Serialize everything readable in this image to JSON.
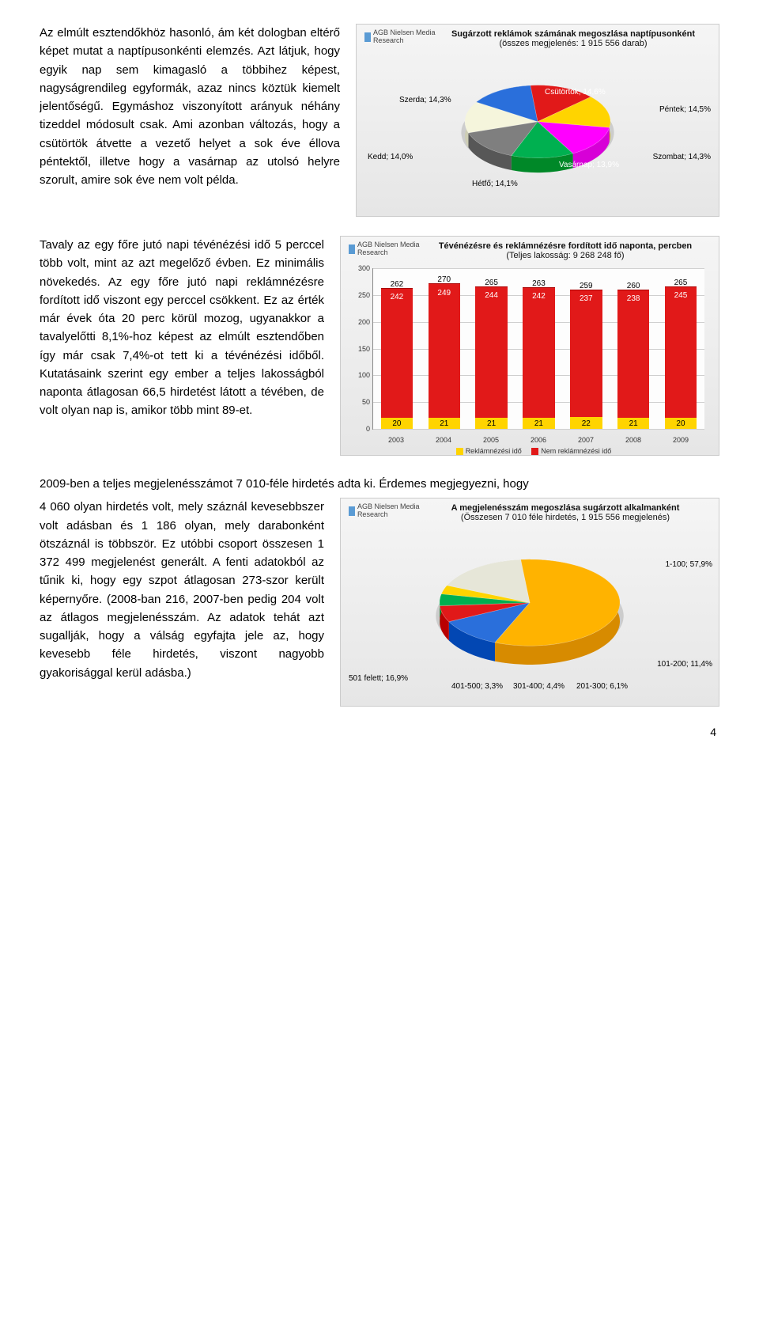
{
  "section1": {
    "text": "Az elmúlt esztendőkhöz hasonló, ám két dologban eltérő képet mutat a naptípusonkénti elemzés. Azt látjuk, hogy egyik nap sem kimagasló a többihez képest, nagyságrendileg egyformák, azaz nincs köztük kiemelt jelentőségű. Egymáshoz viszonyított arányuk néhány tizeddel módosult csak. Ami azonban változás, hogy a csütörtök átvette a vezető helyet a sok éve éllova péntektől, illetve hogy a vasárnap az utolsó helyre szorult, amire sok éve nem volt példa."
  },
  "chart1": {
    "title": "Sugárzott reklámok számának megoszlása naptípusonként",
    "subtitle": "(összes megjelenés: 1 915 556 darab)",
    "logo": "AGB Nielsen\nMedia Research",
    "slices": [
      {
        "label": "Csütörtök; 14,6%",
        "value": 14.6,
        "color": "#e11919"
      },
      {
        "label": "Péntek; 14,5%",
        "value": 14.5,
        "color": "#ffd400"
      },
      {
        "label": "Szombat; 14,3%",
        "value": 14.3,
        "color": "#ff00ff"
      },
      {
        "label": "Vasárnap; 13,9%",
        "value": 13.9,
        "color": "#00b050"
      },
      {
        "label": "Hétfő; 14,1%",
        "value": 14.1,
        "color": "#7f7f7f"
      },
      {
        "label": "Kedd; 14,0%",
        "value": 14.0,
        "color": "#f5f5dc"
      },
      {
        "label": "Szerda; 14,3%",
        "value": 14.3,
        "color": "#2a6fdb"
      }
    ]
  },
  "section2": {
    "text_wrap": "Tavaly az egy főre jutó napi tévénézési idő 5 perccel több volt, mint az azt megelőző évben. Ez minimális növekedés. Az egy főre jutó napi reklámnézésre fordított idő viszont egy perccel csökkent. Ez az érték már évek óta 20 perc körül mozog, ugyanakkor a tavalyelőtti 8,1%-hoz képest az elmúlt esztendőben így már csak 7,4%-ot tett ki a tévénézési időből.",
    "text_full": "Kutatásaink szerint egy ember a teljes lakosságból naponta átlagosan 66,5 hirdetést látott a tévében, de volt olyan nap is, amikor több mint 89-et."
  },
  "chart2": {
    "title": "Tévénézésre és reklámnézésre fordított idő naponta, percben",
    "subtitle": "(Teljes lakosság: 9 268 248 fő)",
    "logo": "AGB Nielsen\nMedia Research",
    "y_max": 300,
    "y_step": 50,
    "years": [
      "2003",
      "2004",
      "2005",
      "2006",
      "2007",
      "2008",
      "2009"
    ],
    "totals": [
      262,
      270,
      265,
      263,
      259,
      260,
      265
    ],
    "red": [
      242,
      249,
      244,
      242,
      237,
      238,
      245
    ],
    "yellow": [
      20,
      21,
      21,
      21,
      22,
      21,
      20
    ],
    "legend_yellow": "Reklámnézési idő",
    "legend_red": "Nem reklámnézési idő",
    "colors": {
      "red": "#e11919",
      "yellow": "#ffd400"
    }
  },
  "section3": {
    "text_lead": "2009-ben a teljes megjelenésszámot 7 010-féle hirdetés adta ki. Érdemes megjegyezni, hogy",
    "text_wrap": "4 060 olyan hirdetés volt, mely száznál kevesebbszer volt adásban és 1 186 olyan, mely darabonként ötszáznál is többször. Ez utóbbi csoport összesen 1 372 499 megjelenést generált. A fenti adatokból az tűnik ki, hogy egy szpot átlagosan 273-szor került képernyőre. (2008-ban 216, 2007-ben pedig 204 volt az átlagos megjelenésszám. Az adatok tehát azt",
    "text_full": "sugallják, hogy a válság egyfajta jele az, hogy kevesebb féle hirdetés, viszont nagyobb gyakorisággal kerül adásba.)"
  },
  "chart3": {
    "title": "A megjelenésszám megoszlása sugárzott alkalmanként",
    "subtitle": "(Összesen 7 010 féle hirdetés, 1 915 556 megjelenés)",
    "logo": "AGB Nielsen\nMedia Research",
    "slices": [
      {
        "label": "1-100; 57,9%",
        "value": 57.9,
        "color": "#ffb300"
      },
      {
        "label": "101-200; 11,4%",
        "value": 11.4,
        "color": "#2a6fdb"
      },
      {
        "label": "201-300; 6,1%",
        "value": 6.1,
        "color": "#e11919"
      },
      {
        "label": "301-400; 4,4%",
        "value": 4.4,
        "color": "#00b050"
      },
      {
        "label": "401-500; 3,3%",
        "value": 3.3,
        "color": "#ffd400"
      },
      {
        "label": "501 felett; 16,9%",
        "value": 16.9,
        "color": "#e6e6d8"
      }
    ]
  },
  "page_number": "4"
}
